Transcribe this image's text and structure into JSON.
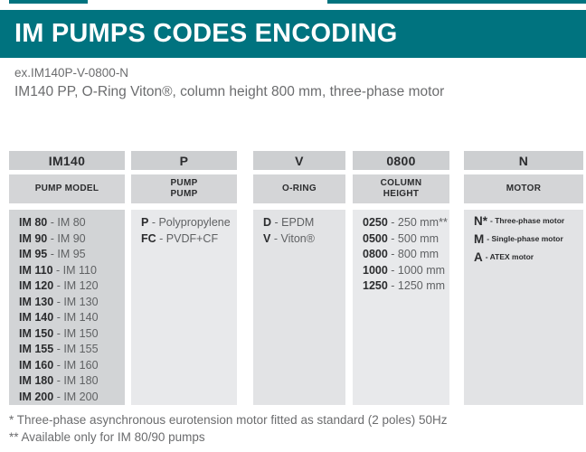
{
  "header": {
    "title": "IM PUMPS CODES ENCODING",
    "example_code": "ex.IM140P-V-0800-N",
    "example_description": "IM140 PP, O-Ring Viton®, column height 800 mm, three-phase motor"
  },
  "table": {
    "separator": " - ",
    "columns": [
      {
        "code": "IM140",
        "label_lines": [
          "PUMP MODEL"
        ],
        "body_shade": "dark",
        "style": "plain",
        "entries": [
          {
            "code": "IM 80",
            "value": "IM 80"
          },
          {
            "code": "IM 90",
            "value": "IM 90"
          },
          {
            "code": "IM 95",
            "value": "IM 95"
          },
          {
            "code": "IM 110",
            "value": "IM 110"
          },
          {
            "code": "IM 120",
            "value": "IM 120"
          },
          {
            "code": "IM 130",
            "value": "IM 130"
          },
          {
            "code": "IM 140",
            "value": "IM 140"
          },
          {
            "code": "IM 150",
            "value": "IM 150"
          },
          {
            "code": "IM 155",
            "value": "IM 155"
          },
          {
            "code": "IM 160",
            "value": "IM 160"
          },
          {
            "code": "IM 180",
            "value": "IM 180"
          },
          {
            "code": "IM 200",
            "value": "IM 200"
          }
        ]
      },
      {
        "code": "P",
        "label_lines": [
          "PUMP",
          "PUMP"
        ],
        "body_shade": "light",
        "style": "plain",
        "entries": [
          {
            "code": "P",
            "value": "Polypropylene"
          },
          {
            "code": "FC",
            "value": "PVDF+CF"
          }
        ]
      },
      {
        "code": "V",
        "label_lines": [
          "O-RING"
        ],
        "body_shade": "mid",
        "style": "plain",
        "entries": [
          {
            "code": "D",
            "value": "EPDM"
          },
          {
            "code": "V",
            "value": "Viton®"
          }
        ]
      },
      {
        "code": "0800",
        "label_lines": [
          "COLUMN",
          "HEIGHT"
        ],
        "body_shade": "light",
        "style": "plain",
        "entries": [
          {
            "code": "0250",
            "value": "250 mm**"
          },
          {
            "code": "0500",
            "value": "500 mm"
          },
          {
            "code": "0800",
            "value": "800 mm"
          },
          {
            "code": "1000",
            "value": "1000 mm"
          },
          {
            "code": "1250",
            "value": "1250 mm"
          }
        ]
      },
      {
        "code": "N",
        "label_lines": [
          "MOTOR"
        ],
        "body_shade": "mid",
        "style": "motor",
        "entries": [
          {
            "code": "N*",
            "value": "Three-phase motor"
          },
          {
            "code": "M",
            "value": "Single-phase motor"
          },
          {
            "code": "A",
            "value": "ATEX motor"
          }
        ]
      }
    ]
  },
  "footnotes": [
    "* Three-phase asynchronous eurotension motor fitted as standard (2 poles) 50Hz",
    "** Available only for IM 80/90 pumps"
  ],
  "colors": {
    "accent_teal": "#00737f",
    "header_row_code_bg": "#cdcfd1",
    "header_row_label_bg": "#d4d5d7",
    "body_dark_bg": "#d2d4d6",
    "body_light_bg": "#e8e9eb",
    "body_mid_bg": "#e2e3e5",
    "text_dark": "#2b2c2e",
    "text_gray": "#6b6c6e",
    "title_text": "#ffffff"
  }
}
